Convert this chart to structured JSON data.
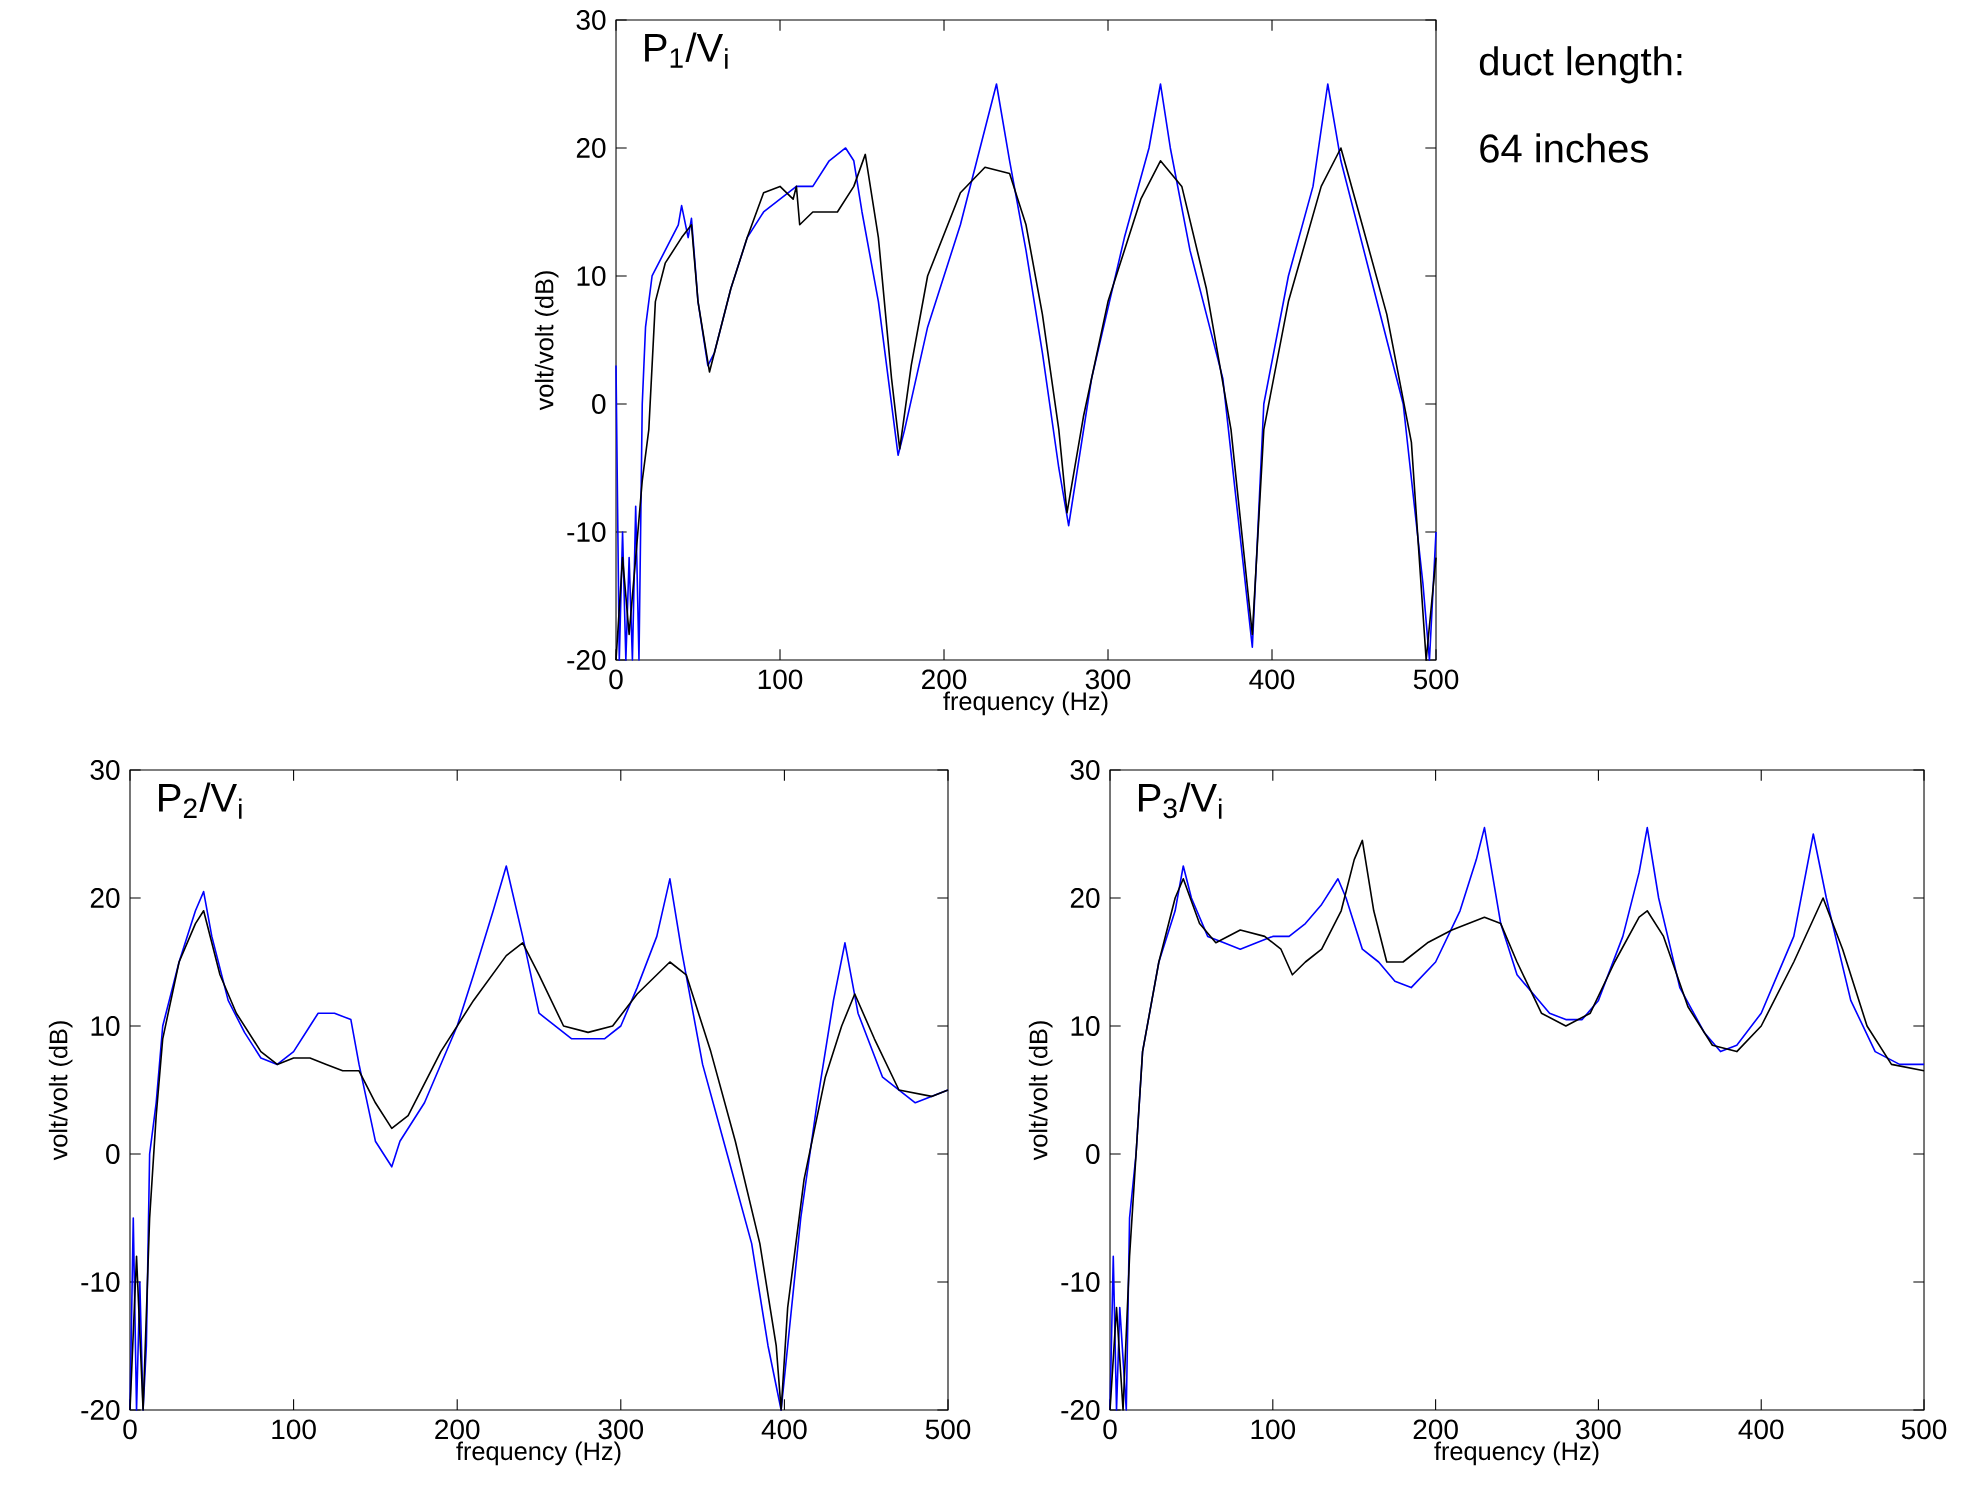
{
  "chart_data": [
    {
      "type": "line",
      "title": "P$_{1}$/V$_{i}$",
      "xlabel": "frequency (Hz)",
      "ylabel": "volt/volt (dB)",
      "xlim": [
        0,
        500
      ],
      "ylim": [
        -20,
        30
      ],
      "xticks": [
        0,
        100,
        200,
        300,
        400,
        500
      ],
      "yticks": [
        -20,
        -10,
        0,
        10,
        20,
        30
      ],
      "annotations": [
        "duct length:",
        "64 inches"
      ],
      "series": [
        {
          "color": "#0000ff",
          "x": [
            0,
            2,
            4,
            6,
            8,
            10,
            12,
            14,
            16,
            18,
            22,
            30,
            38,
            40,
            44,
            46,
            50,
            56,
            60,
            70,
            80,
            90,
            100,
            110,
            120,
            130,
            140,
            145,
            150,
            160,
            170,
            172,
            176,
            190,
            210,
            220,
            232,
            240,
            250,
            260,
            270,
            276,
            290,
            310,
            325,
            332,
            338,
            350,
            370,
            388,
            395,
            410,
            425,
            434,
            442,
            460,
            480,
            492,
            496,
            500
          ],
          "values": [
            3,
            -20,
            -10,
            -20,
            -12,
            -20,
            -8,
            -20,
            0,
            6,
            10,
            12,
            14,
            15.5,
            13,
            14.5,
            8,
            3,
            4,
            9,
            13,
            15,
            16,
            17,
            17,
            19,
            20,
            19,
            15,
            8,
            -2,
            -4,
            -2,
            6,
            14,
            19,
            25,
            19,
            12,
            4,
            -5,
            -9.5,
            2,
            13,
            20,
            25,
            20,
            12,
            2,
            -19,
            0,
            10,
            17,
            25,
            19,
            10,
            0,
            -14,
            -20,
            -10
          ]
        },
        {
          "color": "#000000",
          "x": [
            0,
            4,
            8,
            12,
            16,
            20,
            24,
            30,
            40,
            46,
            50,
            57,
            62,
            70,
            80,
            90,
            100,
            108,
            110,
            112,
            120,
            135,
            145,
            152,
            160,
            168,
            173,
            180,
            190,
            210,
            225,
            240,
            250,
            260,
            270,
            275,
            285,
            300,
            320,
            332,
            345,
            360,
            375,
            388,
            395,
            410,
            430,
            442,
            455,
            470,
            485,
            494,
            500
          ],
          "values": [
            -20,
            -12,
            -18,
            -12,
            -6,
            -2,
            8,
            11,
            13,
            14,
            8,
            2.5,
            5,
            9,
            13,
            16.5,
            17,
            16,
            17,
            14,
            15,
            15,
            17,
            19.5,
            13,
            2,
            -3.5,
            3,
            10,
            16.5,
            18.5,
            18,
            14,
            7,
            -2,
            -8.5,
            -1,
            8,
            16,
            19,
            17,
            9,
            -2,
            -18,
            -2,
            8,
            17,
            20,
            14,
            7,
            -3,
            -20,
            -12
          ]
        }
      ]
    },
    {
      "type": "line",
      "title": "P$_{2}$/V$_{i}$",
      "xlabel": "frequency (Hz)",
      "ylabel": "volt/volt (dB)",
      "xlim": [
        0,
        500
      ],
      "ylim": [
        -20,
        30
      ],
      "xticks": [
        0,
        100,
        200,
        300,
        400,
        500
      ],
      "yticks": [
        -20,
        -10,
        0,
        10,
        20,
        30
      ],
      "series": [
        {
          "color": "#0000ff",
          "x": [
            0,
            2,
            4,
            6,
            8,
            10,
            12,
            16,
            20,
            30,
            40,
            45,
            50,
            60,
            70,
            80,
            90,
            100,
            110,
            115,
            125,
            135,
            140,
            150,
            160,
            165,
            180,
            200,
            210,
            222,
            230,
            240,
            250,
            270,
            290,
            300,
            310,
            322,
            330,
            337,
            350,
            365,
            380,
            390,
            398,
            402,
            410,
            420,
            430,
            437,
            445,
            460,
            480,
            500
          ],
          "values": [
            -20,
            -5,
            -20,
            -10,
            -20,
            -15,
            0,
            4,
            10,
            15,
            19,
            20.5,
            17,
            12,
            9.5,
            7.5,
            7,
            8,
            10,
            11,
            11,
            10.5,
            7,
            1,
            -1,
            1,
            4,
            10,
            14,
            19,
            22.5,
            17,
            11,
            9,
            9,
            10,
            13,
            17,
            21.5,
            16,
            7,
            0,
            -7,
            -15,
            -20,
            -15,
            -5,
            4,
            12,
            16.5,
            11,
            6,
            4,
            5
          ]
        },
        {
          "color": "#000000",
          "x": [
            0,
            4,
            8,
            12,
            16,
            20,
            30,
            40,
            45,
            55,
            65,
            80,
            90,
            100,
            110,
            120,
            130,
            140,
            150,
            160,
            170,
            190,
            210,
            230,
            240,
            250,
            265,
            280,
            295,
            310,
            330,
            340,
            355,
            370,
            385,
            395,
            398,
            402,
            412,
            425,
            435,
            443,
            455,
            470,
            490,
            500
          ],
          "values": [
            -20,
            -8,
            -20,
            -5,
            3,
            9,
            15,
            18,
            19,
            14,
            11,
            8,
            7,
            7.5,
            7.5,
            7,
            6.5,
            6.5,
            4,
            2,
            3,
            8,
            12,
            15.5,
            16.5,
            14,
            10,
            9.5,
            10,
            12.5,
            15,
            14,
            8,
            1,
            -7,
            -15,
            -20,
            -12,
            -2,
            6,
            10,
            12.5,
            9,
            5,
            4.5,
            5
          ]
        }
      ]
    },
    {
      "type": "line",
      "title": "P$_{3}$/V$_{i}$",
      "xlabel": "frequency (Hz)",
      "ylabel": "volt/volt (dB)",
      "xlim": [
        0,
        500
      ],
      "ylim": [
        -20,
        30
      ],
      "xticks": [
        0,
        100,
        200,
        300,
        400,
        500
      ],
      "yticks": [
        -20,
        -10,
        0,
        10,
        20,
        30
      ],
      "series": [
        {
          "color": "#0000ff",
          "x": [
            0,
            2,
            4,
            6,
            10,
            12,
            16,
            20,
            30,
            40,
            45,
            50,
            60,
            70,
            80,
            90,
            100,
            110,
            120,
            130,
            140,
            145,
            155,
            165,
            175,
            185,
            200,
            215,
            225,
            230,
            240,
            250,
            270,
            280,
            290,
            300,
            315,
            325,
            330,
            337,
            350,
            365,
            375,
            385,
            400,
            420,
            432,
            440,
            455,
            470,
            485,
            500
          ],
          "values": [
            -20,
            -8,
            -20,
            -12,
            -20,
            -5,
            0,
            8,
            15,
            19,
            22.5,
            20,
            17,
            16.5,
            16,
            16.5,
            17,
            17,
            18,
            19.5,
            21.5,
            20,
            16,
            15,
            13.5,
            13,
            15,
            19,
            23,
            25.5,
            18,
            14,
            11,
            10.5,
            10.5,
            12,
            17,
            22,
            25.5,
            20,
            13,
            9.5,
            8,
            8.5,
            11,
            17,
            25,
            20,
            12,
            8,
            7,
            7
          ]
        },
        {
          "color": "#000000",
          "x": [
            0,
            4,
            8,
            12,
            16,
            20,
            30,
            40,
            45,
            55,
            65,
            80,
            95,
            105,
            112,
            120,
            130,
            142,
            150,
            155,
            162,
            170,
            180,
            195,
            210,
            230,
            240,
            250,
            265,
            280,
            295,
            310,
            325,
            330,
            340,
            355,
            370,
            385,
            400,
            420,
            438,
            450,
            465,
            480,
            500
          ],
          "values": [
            -20,
            -12,
            -20,
            -8,
            0,
            8,
            15,
            20,
            21.5,
            18,
            16.5,
            17.5,
            17,
            16,
            14,
            15,
            16,
            19,
            23,
            24.5,
            19,
            15,
            15,
            16.5,
            17.5,
            18.5,
            18,
            15,
            11,
            10,
            11,
            15,
            18.5,
            19,
            17,
            11.5,
            8.5,
            8,
            10,
            15,
            20,
            16,
            10,
            7,
            6.5
          ]
        }
      ]
    }
  ]
}
